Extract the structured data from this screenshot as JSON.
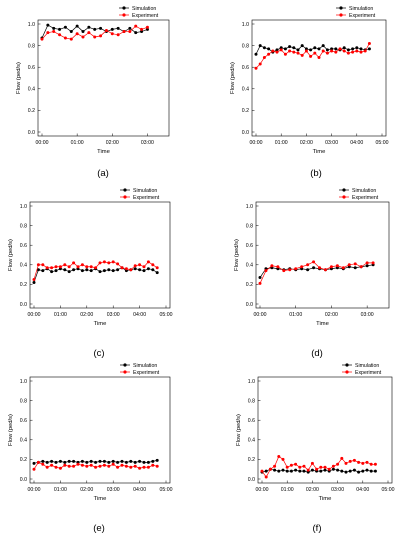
{
  "series_colors": {
    "Simulation": "#000000",
    "Experiment": "#ff0000"
  },
  "chart_data": [
    {
      "panel": "(a)",
      "type": "line",
      "xlabel": "Time",
      "ylabel": "Flow (ped/s)",
      "xlim": [
        0,
        210
      ],
      "ylim": [
        0,
        1.0
      ],
      "xticks": [
        0,
        60,
        120,
        180
      ],
      "xtick_labels": [
        "00:00",
        "01:00",
        "02:00",
        "03:00"
      ],
      "yticks": [
        0,
        0.2,
        0.4,
        0.6,
        0.8,
        1.0
      ],
      "ytick_labels": [
        "0.0",
        "0.2",
        "0.4",
        "0.6",
        "0.8",
        "1.0"
      ],
      "legend": [
        "Simulation",
        "Experiment"
      ],
      "legend_position": "top-right",
      "series": [
        {
          "name": "Simulation",
          "x": [
            0,
            10,
            20,
            30,
            40,
            50,
            60,
            70,
            80,
            90,
            100,
            110,
            120,
            130,
            140,
            150,
            160,
            170,
            180
          ],
          "y": [
            0.87,
            0.99,
            0.96,
            0.95,
            0.97,
            0.93,
            0.98,
            0.93,
            0.97,
            0.95,
            0.96,
            0.93,
            0.95,
            0.96,
            0.93,
            0.96,
            0.92,
            0.93,
            0.95
          ]
        },
        {
          "name": "Experiment",
          "x": [
            0,
            10,
            20,
            30,
            40,
            50,
            60,
            70,
            80,
            90,
            100,
            110,
            120,
            130,
            140,
            150,
            160,
            170,
            180
          ],
          "y": [
            0.86,
            0.92,
            0.93,
            0.9,
            0.87,
            0.86,
            0.91,
            0.88,
            0.92,
            0.88,
            0.89,
            0.94,
            0.91,
            0.9,
            0.93,
            0.93,
            0.98,
            0.95,
            0.97
          ]
        }
      ]
    },
    {
      "panel": "(b)",
      "type": "line",
      "xlabel": "Time",
      "ylabel": "Flow (ped/s)",
      "xlim": [
        0,
        300
      ],
      "ylim": [
        0,
        1.0
      ],
      "xticks": [
        0,
        60,
        120,
        180,
        240,
        300
      ],
      "xtick_labels": [
        "00:00",
        "01:00",
        "02:00",
        "03:00",
        "04:00",
        "05:00"
      ],
      "yticks": [
        0,
        0.2,
        0.4,
        0.6,
        0.8,
        1.0
      ],
      "ytick_labels": [
        "0.0",
        "0.2",
        "0.4",
        "0.6",
        "0.8",
        "1.0"
      ],
      "legend": [
        "Simulation",
        "Experiment"
      ],
      "legend_position": "top-right",
      "series": [
        {
          "name": "Simulation",
          "x": [
            0,
            10,
            20,
            30,
            40,
            50,
            60,
            70,
            80,
            90,
            100,
            110,
            120,
            130,
            140,
            150,
            160,
            170,
            180,
            190,
            200,
            210,
            220,
            230,
            240,
            250,
            260,
            270
          ],
          "y": [
            0.72,
            0.8,
            0.78,
            0.77,
            0.74,
            0.76,
            0.78,
            0.77,
            0.79,
            0.78,
            0.76,
            0.8,
            0.77,
            0.76,
            0.78,
            0.77,
            0.8,
            0.76,
            0.77,
            0.77,
            0.76,
            0.78,
            0.76,
            0.77,
            0.78,
            0.77,
            0.76,
            0.77
          ]
        },
        {
          "name": "Experiment",
          "x": [
            0,
            10,
            20,
            30,
            40,
            50,
            60,
            70,
            80,
            90,
            100,
            110,
            120,
            130,
            140,
            150,
            160,
            170,
            180,
            190,
            200,
            210,
            220,
            230,
            240,
            250,
            260,
            270
          ],
          "y": [
            0.59,
            0.63,
            0.69,
            0.72,
            0.75,
            0.74,
            0.76,
            0.72,
            0.75,
            0.74,
            0.73,
            0.71,
            0.75,
            0.7,
            0.73,
            0.69,
            0.75,
            0.73,
            0.75,
            0.74,
            0.77,
            0.75,
            0.73,
            0.74,
            0.75,
            0.74,
            0.75,
            0.82
          ]
        }
      ]
    },
    {
      "panel": "(c)",
      "type": "line",
      "xlabel": "Time",
      "ylabel": "Flow (ped/s)",
      "xlim": [
        0,
        300
      ],
      "ylim": [
        0,
        1.0
      ],
      "xticks": [
        0,
        60,
        120,
        180,
        240,
        300
      ],
      "xtick_labels": [
        "00:00",
        "01:00",
        "02:00",
        "03:00",
        "04:00",
        "05:00"
      ],
      "yticks": [
        0,
        0.2,
        0.4,
        0.6,
        0.8,
        1.0
      ],
      "ytick_labels": [
        "0.0",
        "0.2",
        "0.4",
        "0.6",
        "0.8",
        "1.0"
      ],
      "legend": [
        "Simulation",
        "Experiment"
      ],
      "legend_position": "top-right",
      "series": [
        {
          "name": "Simulation",
          "x": [
            0,
            10,
            20,
            30,
            40,
            50,
            60,
            70,
            80,
            90,
            100,
            110,
            120,
            130,
            140,
            150,
            160,
            170,
            180,
            190,
            200,
            210,
            220,
            230,
            240,
            250,
            260,
            270,
            280
          ],
          "y": [
            0.22,
            0.35,
            0.34,
            0.36,
            0.33,
            0.34,
            0.36,
            0.35,
            0.33,
            0.35,
            0.36,
            0.34,
            0.35,
            0.34,
            0.36,
            0.33,
            0.34,
            0.35,
            0.34,
            0.35,
            0.37,
            0.34,
            0.35,
            0.36,
            0.35,
            0.34,
            0.36,
            0.35,
            0.32
          ]
        },
        {
          "name": "Experiment",
          "x": [
            0,
            10,
            20,
            30,
            40,
            50,
            60,
            70,
            80,
            90,
            100,
            110,
            120,
            130,
            140,
            150,
            160,
            170,
            180,
            190,
            200,
            210,
            220,
            230,
            240,
            250,
            260,
            270,
            280
          ],
          "y": [
            0.25,
            0.4,
            0.4,
            0.37,
            0.37,
            0.38,
            0.38,
            0.4,
            0.38,
            0.42,
            0.38,
            0.4,
            0.38,
            0.38,
            0.37,
            0.42,
            0.43,
            0.42,
            0.43,
            0.41,
            0.37,
            0.36,
            0.35,
            0.39,
            0.4,
            0.38,
            0.43,
            0.4,
            0.37
          ]
        }
      ]
    },
    {
      "panel": "(d)",
      "type": "line",
      "xlabel": "Time",
      "ylabel": "Flow (ped/s)",
      "xlim": [
        0,
        210
      ],
      "ylim": [
        0,
        1.0
      ],
      "xticks": [
        0,
        60,
        120,
        180
      ],
      "xtick_labels": [
        "00:00",
        "01:00",
        "02:00",
        "03:00"
      ],
      "yticks": [
        0,
        0.2,
        0.4,
        0.6,
        0.8,
        1.0
      ],
      "ytick_labels": [
        "0.0",
        "0.2",
        "0.4",
        "0.6",
        "0.8",
        "1.0"
      ],
      "legend": [
        "Simulation",
        "Experiment"
      ],
      "legend_position": "top-right",
      "series": [
        {
          "name": "Simulation",
          "x": [
            0,
            10,
            20,
            30,
            40,
            50,
            60,
            70,
            80,
            90,
            100,
            110,
            120,
            130,
            140,
            150,
            160,
            170,
            180,
            190
          ],
          "y": [
            0.27,
            0.36,
            0.37,
            0.36,
            0.35,
            0.36,
            0.35,
            0.36,
            0.35,
            0.37,
            0.36,
            0.35,
            0.36,
            0.37,
            0.36,
            0.38,
            0.37,
            0.38,
            0.39,
            0.4
          ]
        },
        {
          "name": "Experiment",
          "x": [
            0,
            10,
            20,
            30,
            40,
            50,
            60,
            70,
            80,
            90,
            100,
            110,
            120,
            130,
            140,
            150,
            160,
            170,
            180,
            190
          ],
          "y": [
            0.21,
            0.34,
            0.39,
            0.38,
            0.34,
            0.35,
            0.36,
            0.38,
            0.4,
            0.43,
            0.37,
            0.35,
            0.38,
            0.39,
            0.37,
            0.4,
            0.41,
            0.38,
            0.42,
            0.42
          ]
        }
      ]
    },
    {
      "panel": "(e)",
      "type": "line",
      "xlabel": "Time",
      "ylabel": "Flow (ped/s)",
      "xlim": [
        0,
        300
      ],
      "ylim": [
        0,
        1.0
      ],
      "xticks": [
        0,
        60,
        120,
        180,
        240,
        300
      ],
      "xtick_labels": [
        "00:00",
        "01:00",
        "02:00",
        "03:00",
        "04:00",
        "05:00"
      ],
      "yticks": [
        0,
        0.2,
        0.4,
        0.6,
        0.8,
        1.0
      ],
      "ytick_labels": [
        "0.0",
        "0.2",
        "0.4",
        "0.6",
        "0.8",
        "1.0"
      ],
      "legend": [
        "Simulation",
        "Experiment"
      ],
      "legend_position": "top-right",
      "series": [
        {
          "name": "Simulation",
          "x": [
            0,
            10,
            20,
            30,
            40,
            50,
            60,
            70,
            80,
            90,
            100,
            110,
            120,
            130,
            140,
            150,
            160,
            170,
            180,
            190,
            200,
            210,
            220,
            230,
            240,
            250,
            260,
            270,
            280
          ],
          "y": [
            0.16,
            0.17,
            0.18,
            0.17,
            0.18,
            0.17,
            0.18,
            0.17,
            0.18,
            0.18,
            0.17,
            0.18,
            0.17,
            0.18,
            0.17,
            0.18,
            0.18,
            0.17,
            0.18,
            0.17,
            0.18,
            0.17,
            0.18,
            0.17,
            0.18,
            0.17,
            0.17,
            0.18,
            0.19
          ]
        },
        {
          "name": "Experiment",
          "x": [
            0,
            10,
            20,
            30,
            40,
            50,
            60,
            70,
            80,
            90,
            100,
            110,
            120,
            130,
            140,
            150,
            160,
            170,
            180,
            190,
            200,
            210,
            220,
            230,
            240,
            250,
            260,
            270,
            280
          ],
          "y": [
            0.1,
            0.17,
            0.15,
            0.12,
            0.14,
            0.12,
            0.11,
            0.14,
            0.13,
            0.13,
            0.15,
            0.14,
            0.13,
            0.14,
            0.12,
            0.13,
            0.14,
            0.13,
            0.15,
            0.12,
            0.14,
            0.13,
            0.12,
            0.13,
            0.11,
            0.12,
            0.12,
            0.14,
            0.13
          ]
        }
      ]
    },
    {
      "panel": "(f)",
      "type": "line",
      "xlabel": "Time",
      "ylabel": "Flow (ped/s)",
      "xlim": [
        0,
        300
      ],
      "ylim": [
        0,
        1.0
      ],
      "xticks": [
        0,
        60,
        120,
        180,
        240,
        300
      ],
      "xtick_labels": [
        "00:00",
        "01:00",
        "02:00",
        "03:00",
        "04:00",
        "05:00"
      ],
      "yticks": [
        0,
        0.2,
        0.4,
        0.6,
        0.8,
        1.0
      ],
      "ytick_labels": [
        "0.0",
        "0.2",
        "0.4",
        "0.6",
        "0.8",
        "1.0"
      ],
      "legend": [
        "Simulation",
        "Experiment"
      ],
      "legend_position": "top-right",
      "series": [
        {
          "name": "Simulation",
          "x": [
            0,
            10,
            20,
            30,
            40,
            50,
            60,
            70,
            80,
            90,
            100,
            110,
            120,
            130,
            140,
            150,
            160,
            170,
            180,
            190,
            200,
            210,
            220,
            230,
            240,
            250,
            260,
            270
          ],
          "y": [
            0.07,
            0.08,
            0.1,
            0.09,
            0.08,
            0.09,
            0.08,
            0.08,
            0.09,
            0.08,
            0.08,
            0.07,
            0.09,
            0.08,
            0.08,
            0.09,
            0.08,
            0.1,
            0.09,
            0.08,
            0.07,
            0.08,
            0.09,
            0.07,
            0.08,
            0.09,
            0.08,
            0.08
          ]
        },
        {
          "name": "Experiment",
          "x": [
            0,
            10,
            20,
            30,
            40,
            50,
            60,
            70,
            80,
            90,
            100,
            110,
            120,
            130,
            140,
            150,
            160,
            170,
            180,
            190,
            200,
            210,
            220,
            230,
            240,
            250,
            260,
            270
          ],
          "y": [
            0.08,
            0.02,
            0.1,
            0.13,
            0.23,
            0.2,
            0.12,
            0.14,
            0.15,
            0.12,
            0.13,
            0.09,
            0.16,
            0.1,
            0.12,
            0.12,
            0.1,
            0.13,
            0.15,
            0.21,
            0.16,
            0.18,
            0.19,
            0.17,
            0.16,
            0.17,
            0.15,
            0.15
          ]
        }
      ]
    }
  ]
}
